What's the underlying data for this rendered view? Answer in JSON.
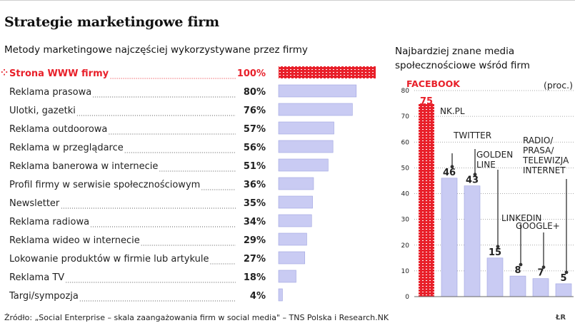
{
  "title": "Strategie marketingowe firm",
  "source": "Źródło: „Social Enterprise – skala zaangażowania firm w social media\" – TNS Polska i Research.NK",
  "brand": "ŁR",
  "colors": {
    "bar": "#c9cbf3",
    "bar_stroke": "#9fa3e0",
    "highlight": "#e8202a",
    "text": "#222222"
  },
  "chart_data": [
    {
      "type": "bar",
      "orientation": "horizontal",
      "title": "Metody marketingowe najczęściej wykorzystywane przez firmy",
      "ylim": [
        0,
        100
      ],
      "highlight_index": 0,
      "categories": [
        "Strona WWW firmy",
        "Reklama prasowa",
        "Ulotki, gazetki",
        "Reklama outdoorowa",
        "Reklama w przeglądarce",
        "Reklama banerowa w internecie",
        "Profil firmy w serwisie społecznościowym",
        "Newsletter",
        "Reklama radiowa",
        "Reklama wideo w internecie",
        "Lokowanie produktów w firmie lub artykule",
        "Reklama TV",
        "Targi/sympozja"
      ],
      "values": [
        100,
        80,
        76,
        57,
        56,
        51,
        36,
        35,
        34,
        29,
        27,
        18,
        4
      ],
      "value_labels": [
        "100%",
        "80%",
        "76%",
        "57%",
        "56%",
        "51%",
        "36%",
        "35%",
        "34%",
        "29%",
        "27%",
        "18%",
        "4%"
      ]
    },
    {
      "type": "bar",
      "orientation": "vertical",
      "title": "Najbardziej znane media społecznościowe wśród firm",
      "unit_label": "(proc.)",
      "ylim": [
        0,
        80
      ],
      "yticks": [
        0,
        10,
        20,
        30,
        40,
        50,
        60,
        70,
        80
      ],
      "highlight_index": 0,
      "categories": [
        "FACEBOOK",
        "NK.PL",
        "TWITTER",
        "GOLDEN LINE",
        "LINKEDIN",
        "GOOGLE+",
        "RADIO/ PRASA/ TELEWIZJA INTERNET"
      ],
      "category_lines": [
        [
          "FACEBOOK"
        ],
        [
          "NK.PL"
        ],
        [
          "TWITTER"
        ],
        [
          "GOLDEN",
          "LINE"
        ],
        [
          "LINKEDIN"
        ],
        [
          "GOOGLE+"
        ],
        [
          "RADIO/",
          "PRASA/",
          "TELEWIZJA",
          "INTERNET"
        ]
      ],
      "values": [
        75,
        46,
        43,
        15,
        8,
        7,
        5
      ]
    }
  ]
}
